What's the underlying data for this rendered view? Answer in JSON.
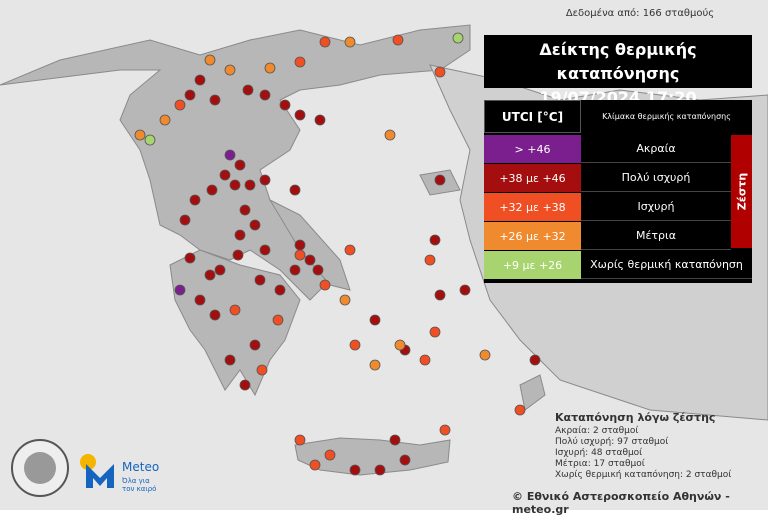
{
  "header": {
    "source": "Δεδομένα από: 166 σταθμούς",
    "title": "Δείκτης θερμικής καταπόνησης",
    "datetime": "19/07/2024 17:20"
  },
  "legend": {
    "col1": "UTCI [°C]",
    "col2": "Κλίμακα θερμικής καταπόνησης",
    "group": "Ζέστη",
    "rows": [
      {
        "range": "> +46",
        "label": "Ακραία"
      },
      {
        "range": "+38 με +46",
        "label": "Πολύ ισχυρή"
      },
      {
        "range": "+32 με +38",
        "label": "Ισχυρή"
      },
      {
        "range": "+26 με +32",
        "label": "Μέτρια"
      },
      {
        "range": "+9 με +26",
        "label": "Χωρίς θερμική καταπόνηση"
      }
    ]
  },
  "stats": {
    "title": "Καταπόνηση λόγω ζέστης",
    "lines": [
      "Ακραία: 2 σταθμοί",
      "Πολύ ισχυρή: 97 σταθμοί",
      "Ισχυρή: 48 σταθμοί",
      "Μέτρια: 17 σταθμοί",
      "Χωρίς θερμική καταπόνηση: 2 σταθμοί"
    ]
  },
  "logo": {
    "name": "Meteo",
    "tagline": [
      "Όλα για",
      "τον καιρό"
    ]
  },
  "footer": "© Εθνικό Αστεροσκοπείο Αθηνών - meteo.gr"
}
